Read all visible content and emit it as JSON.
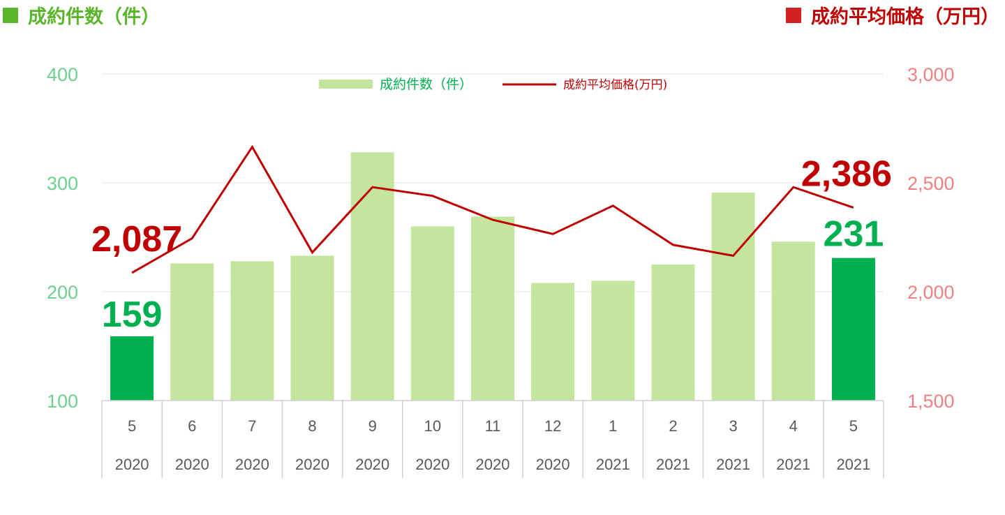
{
  "header": {
    "left_title": "成約件数（件）",
    "right_title": "成約平均価格（万円）"
  },
  "legend": {
    "bar_label": "成約件数（件）",
    "line_label": "成約平均価格(万円)"
  },
  "colors": {
    "bar": "#c3e59d",
    "bar_highlight": "#00b050",
    "line": "#c00000",
    "left_axis": "#6fcf8f",
    "right_axis": "#f07f7f",
    "count_label": "#00b050",
    "price_label": "#c00000"
  },
  "chart_data": {
    "type": "bar",
    "categories": [
      "5",
      "6",
      "7",
      "8",
      "9",
      "10",
      "11",
      "12",
      "1",
      "2",
      "3",
      "4",
      "5"
    ],
    "years": [
      "2020",
      "2020",
      "2020",
      "2020",
      "2020",
      "2020",
      "2020",
      "2020",
      "2021",
      "2021",
      "2021",
      "2021",
      "2021"
    ],
    "series": [
      {
        "name": "成約件数（件）",
        "type": "bar",
        "axis": "left",
        "values": [
          159,
          226,
          228,
          233,
          328,
          260,
          269,
          208,
          210,
          225,
          291,
          246,
          231
        ],
        "highlight": [
          0,
          12
        ],
        "data_labels": [
          "159",
          "231"
        ]
      },
      {
        "name": "成約平均価格(万円)",
        "type": "line",
        "axis": "right",
        "values": [
          2087,
          2245,
          2665,
          2180,
          2480,
          2440,
          2330,
          2265,
          2395,
          2215,
          2165,
          2480,
          2386
        ],
        "data_labels": [
          "2,087",
          "2,386"
        ]
      }
    ],
    "left_axis": {
      "range": [
        100,
        400
      ],
      "ticks": [
        "100",
        "200",
        "300",
        "400"
      ]
    },
    "right_axis": {
      "range": [
        1500,
        3000
      ],
      "ticks": [
        "1,500",
        "2,000",
        "2,500",
        "3,000"
      ]
    },
    "grid": true,
    "legend_position": "top-center"
  }
}
